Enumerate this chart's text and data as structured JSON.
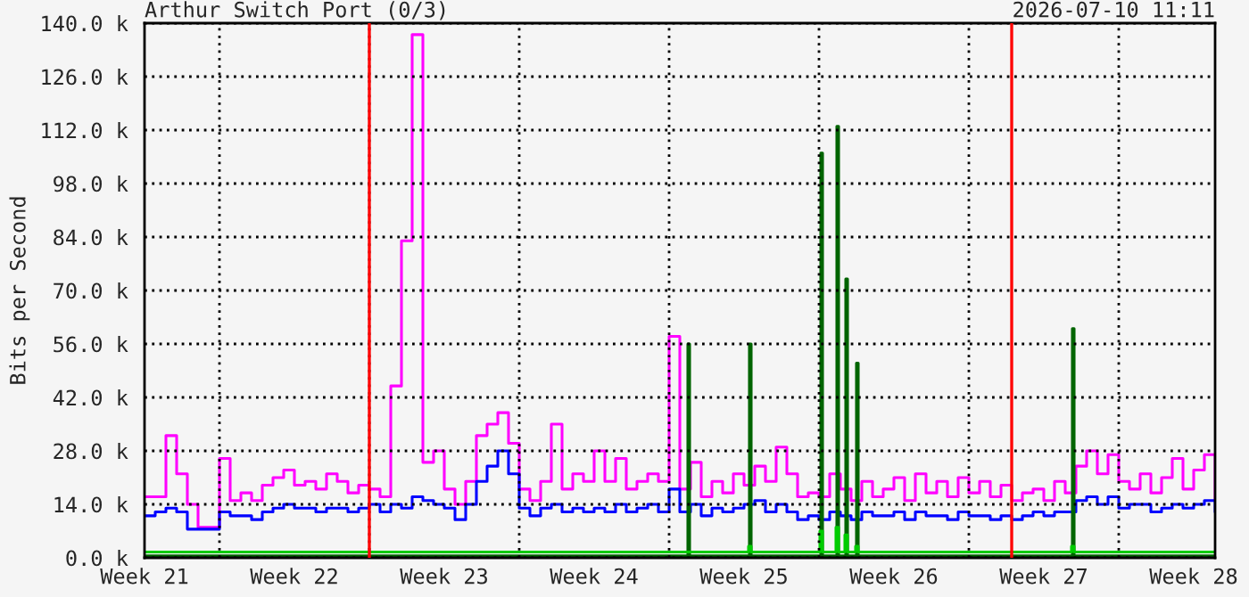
{
  "chart_data": {
    "type": "step",
    "title": "Arthur Switch Port (0/3)",
    "ylabel": "Bits per Second",
    "annotations": [
      "2026-07-10 11:11"
    ],
    "xlim": [
      "2026-05-21T12:00",
      "2026-07-10T12:00"
    ],
    "ylim": [
      0,
      140
    ],
    "xticks": [
      {
        "value": "2026-05-21T12:00",
        "label": "Week 21"
      },
      {
        "value": "2026-05-25",
        "label": null
      },
      {
        "value": "2026-05-28T12:00",
        "label": "Week 22"
      },
      {
        "value": "2026-06-01",
        "label": null
      },
      {
        "value": "2026-06-04T12:00",
        "label": "Week 23"
      },
      {
        "value": "2026-06-08",
        "label": null
      },
      {
        "value": "2026-06-11T12:00",
        "label": "Week 24"
      },
      {
        "value": "2026-06-15",
        "label": null
      },
      {
        "value": "2026-06-18T12:00",
        "label": "Week 25"
      },
      {
        "value": "2026-06-22",
        "label": null
      },
      {
        "value": "2026-06-25T12:00",
        "label": "Week 26"
      },
      {
        "value": "2026-06-29",
        "label": null
      },
      {
        "value": "2026-07-02T12:00",
        "label": "Week 27"
      },
      {
        "value": "2026-07-06",
        "label": null
      },
      {
        "value": "2026-07-09T12:00",
        "label": "Week 28"
      }
    ],
    "yticks": [
      {
        "value": 0,
        "label": "0.0 k"
      },
      {
        "value": 14,
        "label": "14.0 k"
      },
      {
        "value": 28,
        "label": "28.0 k"
      },
      {
        "value": 42,
        "label": "42.0 k"
      },
      {
        "value": 56,
        "label": "56.0 k"
      },
      {
        "value": 70,
        "label": "70.0 k"
      },
      {
        "value": 84,
        "label": "84.0 k"
      },
      {
        "value": 98,
        "label": "98.0 k"
      },
      {
        "value": 112,
        "label": "112.0 k"
      },
      {
        "value": 126,
        "label": "126.0 k"
      },
      {
        "value": 140,
        "label": "140.0 k"
      }
    ],
    "grid": true,
    "line_style": "solid",
    "ref_lines": [
      {
        "axis": "x",
        "value": "2026-06-01",
        "color": "#ff0000"
      },
      {
        "axis": "x",
        "value": "2026-07-01",
        "color": "#ff0000"
      }
    ],
    "x": [
      "2026-05-21T12:00",
      "2026-05-22T00:00",
      "2026-05-22T12:00",
      "2026-05-23T00:00",
      "2026-05-23T12:00",
      "2026-05-24T00:00",
      "2026-05-24T12:00",
      "2026-05-25T00:00",
      "2026-05-25T12:00",
      "2026-05-26T00:00",
      "2026-05-26T12:00",
      "2026-05-27T00:00",
      "2026-05-27T12:00",
      "2026-05-28T00:00",
      "2026-05-28T12:00",
      "2026-05-29T00:00",
      "2026-05-29T12:00",
      "2026-05-30T00:00",
      "2026-05-30T12:00",
      "2026-05-31T00:00",
      "2026-05-31T12:00",
      "2026-06-01T00:00",
      "2026-06-01T12:00",
      "2026-06-02T00:00",
      "2026-06-02T12:00",
      "2026-06-03T00:00",
      "2026-06-03T12:00",
      "2026-06-04T00:00",
      "2026-06-04T12:00",
      "2026-06-05T00:00",
      "2026-06-05T12:00",
      "2026-06-06T00:00",
      "2026-06-06T12:00",
      "2026-06-07T00:00",
      "2026-06-07T12:00",
      "2026-06-08T00:00",
      "2026-06-08T12:00",
      "2026-06-09T00:00",
      "2026-06-09T12:00",
      "2026-06-10T00:00",
      "2026-06-10T12:00",
      "2026-06-11T00:00",
      "2026-06-11T12:00",
      "2026-06-12T00:00",
      "2026-06-12T12:00",
      "2026-06-13T00:00",
      "2026-06-13T12:00",
      "2026-06-14T00:00",
      "2026-06-14T12:00",
      "2026-06-15T00:00",
      "2026-06-15T12:00",
      "2026-06-16T00:00",
      "2026-06-16T12:00",
      "2026-06-17T00:00",
      "2026-06-17T12:00",
      "2026-06-18T00:00",
      "2026-06-18T12:00",
      "2026-06-19T00:00",
      "2026-06-19T12:00",
      "2026-06-20T00:00",
      "2026-06-20T12:00",
      "2026-06-21T00:00",
      "2026-06-21T12:00",
      "2026-06-22T00:00",
      "2026-06-22T12:00",
      "2026-06-23T00:00",
      "2026-06-23T12:00",
      "2026-06-24T00:00",
      "2026-06-24T12:00",
      "2026-06-25T00:00",
      "2026-06-25T12:00",
      "2026-06-26T00:00",
      "2026-06-26T12:00",
      "2026-06-27T00:00",
      "2026-06-27T12:00",
      "2026-06-28T00:00",
      "2026-06-28T12:00",
      "2026-06-29T00:00",
      "2026-06-29T12:00",
      "2026-06-30T00:00",
      "2026-06-30T12:00",
      "2026-07-01T00:00",
      "2026-07-01T12:00",
      "2026-07-02T00:00",
      "2026-07-02T12:00",
      "2026-07-03T00:00",
      "2026-07-03T12:00",
      "2026-07-04T00:00",
      "2026-07-04T12:00",
      "2026-07-05T00:00",
      "2026-07-05T12:00",
      "2026-07-06T00:00",
      "2026-07-06T12:00",
      "2026-07-07T00:00",
      "2026-07-07T12:00",
      "2026-07-08T00:00",
      "2026-07-08T12:00",
      "2026-07-09T00:00",
      "2026-07-09T12:00",
      "2026-07-10T00:00",
      "2026-07-10T12:00"
    ],
    "series": [
      {
        "color": "#ff00ff",
        "values": [
          16,
          16,
          32,
          22,
          14,
          8,
          8,
          26,
          15,
          17,
          15,
          19,
          21,
          23,
          19,
          20,
          18,
          22,
          20,
          17,
          19,
          18,
          16,
          45,
          83,
          137,
          25,
          28,
          18,
          14,
          20,
          32,
          35,
          38,
          30,
          18,
          15,
          20,
          35,
          18,
          22,
          20,
          28,
          20,
          26,
          18,
          20,
          22,
          20,
          58,
          18,
          25,
          16,
          20,
          17,
          22,
          19,
          24,
          20,
          29,
          22,
          16,
          17,
          16,
          22,
          18,
          15,
          20,
          16,
          18,
          21,
          15,
          22,
          17,
          20,
          16,
          21,
          17,
          20,
          16,
          19,
          15,
          17,
          18,
          15,
          20,
          17,
          24,
          28,
          22,
          27,
          20,
          18,
          22,
          17,
          21,
          26,
          18,
          23,
          27,
          15
        ]
      },
      {
        "color": "#0000ff",
        "values": [
          11,
          12,
          13,
          12,
          7.5,
          7.5,
          7.5,
          12,
          11,
          11,
          10,
          12,
          13,
          14,
          13,
          13,
          12,
          13,
          13,
          12,
          13,
          14,
          12,
          14,
          13,
          16,
          15,
          14,
          13,
          10,
          14,
          20,
          24,
          28,
          22,
          13,
          11,
          13,
          14,
          12,
          13,
          12,
          13,
          12,
          14,
          12,
          13,
          14,
          12,
          18,
          12,
          14,
          11,
          13,
          12,
          13,
          14,
          15,
          12,
          14,
          12,
          10,
          11,
          10,
          12,
          11,
          10,
          12,
          11,
          11,
          12,
          10,
          12,
          11,
          11,
          10,
          12,
          11,
          11,
          10,
          11,
          10,
          11,
          12,
          11,
          12,
          12,
          15,
          16,
          14,
          16,
          13,
          14,
          14,
          12,
          13,
          14,
          13,
          14,
          15,
          12
        ]
      },
      {
        "color": "#006400",
        "x": [
          "2026-05-21T12:00",
          "2026-06-15T21:00",
          "2026-06-15T23:00",
          "2026-06-18T18:00",
          "2026-06-18T20:00",
          "2026-06-22T02:00",
          "2026-06-22T04:00",
          "2026-06-22T20:00",
          "2026-06-22T22:00",
          "2026-06-23T06:00",
          "2026-06-23T08:00",
          "2026-06-23T18:00",
          "2026-06-23T20:00",
          "2026-07-03T20:00",
          "2026-07-03T22:00",
          "2026-07-10T12:00"
        ],
        "values": [
          0.5,
          56,
          0.5,
          56,
          0.5,
          106,
          0.5,
          113,
          0.5,
          73,
          0.5,
          51,
          0.5,
          60,
          0.5,
          0.5
        ]
      },
      {
        "color": "#00cc00",
        "x": [
          "2026-05-21T12:00",
          "2026-06-18T17:00",
          "2026-06-18T20:00",
          "2026-06-22T01:00",
          "2026-06-22T04:00",
          "2026-06-22T19:00",
          "2026-06-22T22:00",
          "2026-06-23T05:00",
          "2026-06-23T08:00",
          "2026-06-23T17:00",
          "2026-06-23T20:00",
          "2026-07-03T19:00",
          "2026-07-03T22:00",
          "2026-07-10T12:00"
        ],
        "values": [
          1.5,
          3,
          1.5,
          7,
          1.5,
          8,
          1.5,
          6,
          1.5,
          3,
          1.5,
          3,
          1.5,
          1.5
        ]
      }
    ]
  }
}
